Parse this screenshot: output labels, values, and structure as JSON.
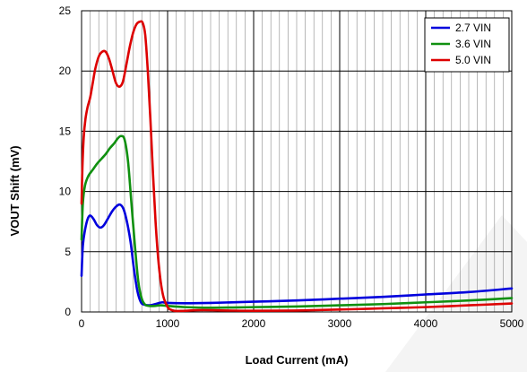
{
  "chart_data": {
    "type": "line",
    "title": "",
    "xlabel": "Load Current (mA)",
    "ylabel": "VOUT Shift (mV)",
    "xlim": [
      0,
      5000
    ],
    "ylim": [
      0,
      25
    ],
    "xticks": [
      0,
      1000,
      2000,
      3000,
      4000,
      5000
    ],
    "yticks": [
      0,
      5,
      10,
      15,
      20,
      25
    ],
    "x_minor_step": 100,
    "grid": true,
    "legend_position": "top-right",
    "series": [
      {
        "name": "2.7 VIN",
        "color": "#0000dd",
        "points": [
          [
            0,
            3.0
          ],
          [
            15,
            5.5
          ],
          [
            40,
            6.8
          ],
          [
            70,
            7.7
          ],
          [
            100,
            8.0
          ],
          [
            140,
            7.7
          ],
          [
            180,
            7.2
          ],
          [
            220,
            7.0
          ],
          [
            260,
            7.2
          ],
          [
            310,
            7.8
          ],
          [
            360,
            8.4
          ],
          [
            410,
            8.8
          ],
          [
            450,
            8.9
          ],
          [
            490,
            8.5
          ],
          [
            530,
            7.4
          ],
          [
            570,
            5.8
          ],
          [
            610,
            3.5
          ],
          [
            650,
            1.7
          ],
          [
            690,
            0.8
          ],
          [
            730,
            0.6
          ],
          [
            780,
            0.55
          ],
          [
            830,
            0.6
          ],
          [
            880,
            0.7
          ],
          [
            940,
            0.8
          ],
          [
            1000,
            0.75
          ],
          [
            1200,
            0.72
          ],
          [
            1500,
            0.75
          ],
          [
            2000,
            0.85
          ],
          [
            2500,
            0.95
          ],
          [
            3000,
            1.1
          ],
          [
            3500,
            1.25
          ],
          [
            4000,
            1.45
          ],
          [
            4500,
            1.65
          ],
          [
            5000,
            1.95
          ]
        ]
      },
      {
        "name": "3.6 VIN",
        "color": "#109010",
        "points": [
          [
            0,
            6.0
          ],
          [
            15,
            9.0
          ],
          [
            40,
            10.5
          ],
          [
            80,
            11.3
          ],
          [
            130,
            11.8
          ],
          [
            180,
            12.3
          ],
          [
            230,
            12.7
          ],
          [
            280,
            13.1
          ],
          [
            330,
            13.6
          ],
          [
            380,
            14.0
          ],
          [
            420,
            14.4
          ],
          [
            460,
            14.6
          ],
          [
            500,
            14.3
          ],
          [
            540,
            12.5
          ],
          [
            580,
            9.0
          ],
          [
            620,
            5.5
          ],
          [
            660,
            2.5
          ],
          [
            700,
            1.1
          ],
          [
            740,
            0.6
          ],
          [
            790,
            0.5
          ],
          [
            850,
            0.5
          ],
          [
            920,
            0.55
          ],
          [
            1000,
            0.5
          ],
          [
            1200,
            0.4
          ],
          [
            1500,
            0.35
          ],
          [
            2000,
            0.4
          ],
          [
            2500,
            0.45
          ],
          [
            3000,
            0.55
          ],
          [
            3500,
            0.65
          ],
          [
            4000,
            0.8
          ],
          [
            4500,
            0.95
          ],
          [
            5000,
            1.15
          ]
        ]
      },
      {
        "name": "5.0 VIN",
        "color": "#dd0000",
        "points": [
          [
            0,
            9.0
          ],
          [
            10,
            12.0
          ],
          [
            25,
            14.5
          ],
          [
            45,
            16.0
          ],
          [
            70,
            17.0
          ],
          [
            100,
            17.8
          ],
          [
            130,
            19.0
          ],
          [
            160,
            20.2
          ],
          [
            200,
            21.2
          ],
          [
            240,
            21.6
          ],
          [
            280,
            21.6
          ],
          [
            320,
            21.0
          ],
          [
            360,
            20.0
          ],
          [
            400,
            19.0
          ],
          [
            440,
            18.7
          ],
          [
            480,
            19.1
          ],
          [
            520,
            20.5
          ],
          [
            560,
            22.0
          ],
          [
            600,
            23.2
          ],
          [
            640,
            23.9
          ],
          [
            680,
            24.1
          ],
          [
            710,
            24.0
          ],
          [
            740,
            23.0
          ],
          [
            770,
            20.0
          ],
          [
            800,
            16.0
          ],
          [
            830,
            11.5
          ],
          [
            860,
            7.5
          ],
          [
            890,
            4.5
          ],
          [
            920,
            2.5
          ],
          [
            950,
            1.3
          ],
          [
            980,
            0.7
          ],
          [
            1010,
            0.3
          ],
          [
            1050,
            0.15
          ],
          [
            1100,
            0.08
          ],
          [
            1200,
            0.1
          ],
          [
            1400,
            0.15
          ],
          [
            1700,
            0.12
          ],
          [
            2000,
            0.1
          ],
          [
            2500,
            0.12
          ],
          [
            3000,
            0.2
          ],
          [
            3500,
            0.3
          ],
          [
            4000,
            0.4
          ],
          [
            4500,
            0.55
          ],
          [
            5000,
            0.7
          ]
        ]
      }
    ]
  }
}
